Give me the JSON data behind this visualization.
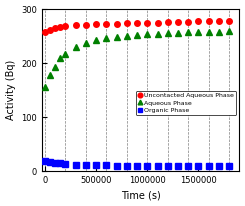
{
  "title": "",
  "xlabel": "Time (s)",
  "ylabel": "Activity (Bq)",
  "xlim": [
    -30000,
    1900000
  ],
  "ylim": [
    0,
    300
  ],
  "xticks": [
    0,
    500000,
    1000000,
    1500000
  ],
  "yticks": [
    0,
    100,
    200,
    300
  ],
  "grid_x_positions": [
    0,
    200000,
    400000,
    600000,
    800000,
    1000000,
    1200000,
    1400000,
    1600000,
    1800000
  ],
  "red_series": {
    "label": "Uncontacted Aqueous Phase",
    "color": "red",
    "marker": "o",
    "x": [
      0,
      50000,
      100000,
      150000,
      200000,
      300000,
      400000,
      500000,
      600000,
      700000,
      800000,
      900000,
      1000000,
      1100000,
      1200000,
      1300000,
      1400000,
      1500000,
      1600000,
      1700000,
      1800000
    ],
    "y": [
      258,
      262,
      265,
      267,
      268,
      270,
      271,
      272,
      273,
      273,
      274,
      274,
      275,
      275,
      276,
      276,
      276,
      277,
      277,
      277,
      277
    ]
  },
  "green_series": {
    "label": "Aqueous Phase",
    "color": "green",
    "marker": "^",
    "x": [
      0,
      50000,
      100000,
      150000,
      200000,
      300000,
      400000,
      500000,
      600000,
      700000,
      800000,
      900000,
      1000000,
      1100000,
      1200000,
      1300000,
      1400000,
      1500000,
      1600000,
      1700000,
      1800000
    ],
    "y": [
      155,
      178,
      193,
      210,
      216,
      230,
      237,
      242,
      246,
      248,
      250,
      252,
      253,
      254,
      255,
      256,
      257,
      257,
      258,
      258,
      259
    ]
  },
  "blue_series": {
    "label": "Organic Phase",
    "color": "blue",
    "marker": "s",
    "x": [
      0,
      50000,
      100000,
      150000,
      200000,
      300000,
      400000,
      500000,
      600000,
      700000,
      800000,
      900000,
      1000000,
      1100000,
      1200000,
      1300000,
      1400000,
      1500000,
      1600000,
      1700000,
      1800000
    ],
    "y": [
      18,
      16,
      14,
      14,
      13,
      12,
      11,
      11,
      11,
      10,
      10,
      10,
      10,
      10,
      10,
      10,
      10,
      10,
      10,
      10,
      10
    ]
  },
  "marker_size": 4,
  "background_color": "#ffffff"
}
